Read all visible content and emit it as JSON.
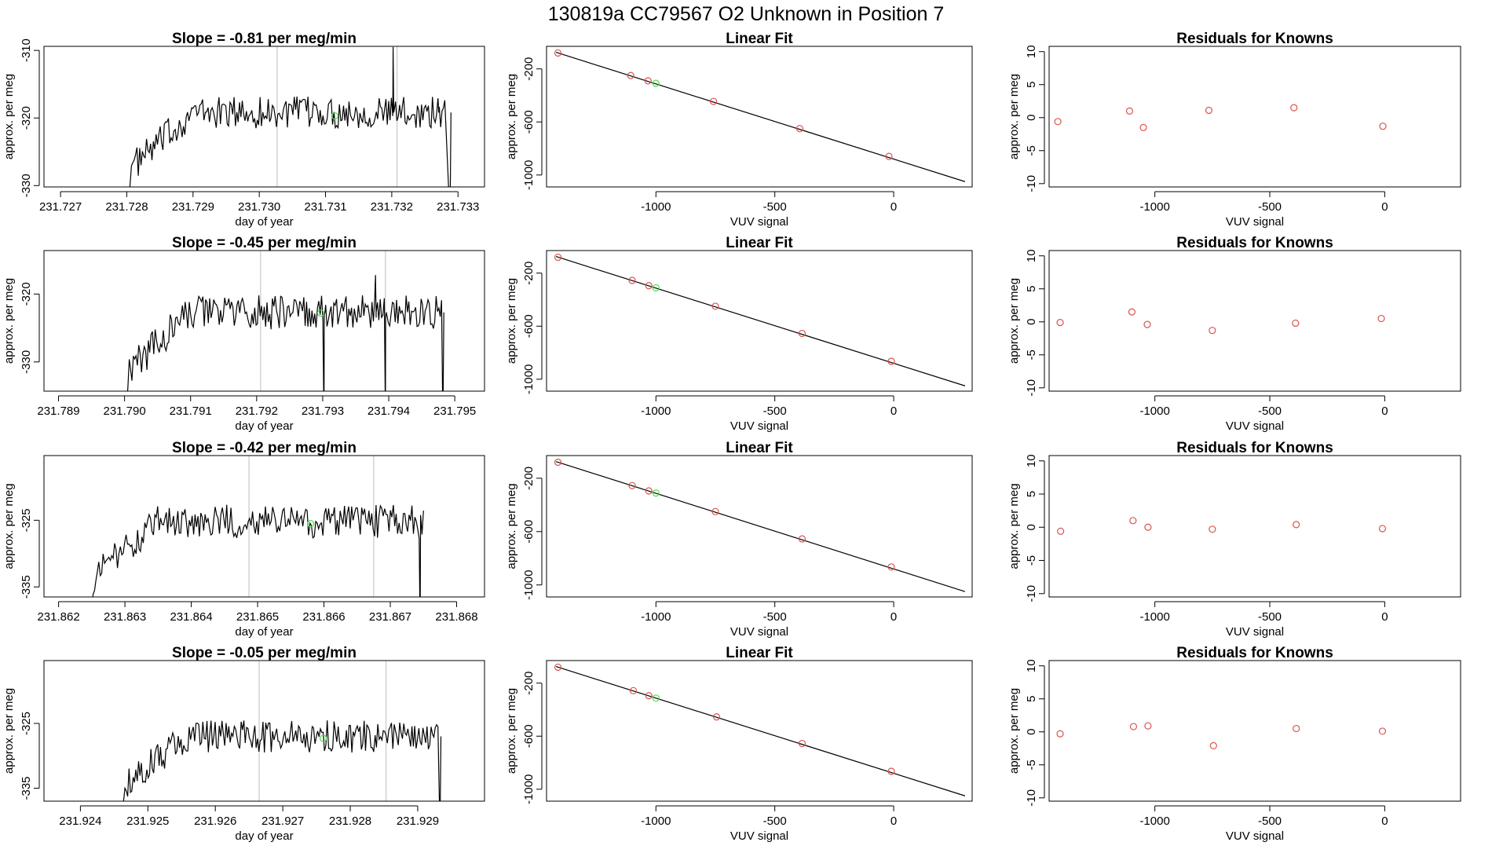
{
  "figure": {
    "title": "130819a      CC79567    O2 Unknown in Position  7"
  },
  "chart_data": [
    {
      "type": "line",
      "panel": "timeseries",
      "row": 1,
      "title": "Slope =  -0.81  per meg/min",
      "xlabel": "day of year",
      "ylabel": "approx. per meg",
      "xlim": [
        231.72675,
        231.7334
      ],
      "ylim": [
        -330.2,
        -309.4
      ],
      "xticks": [
        231.727,
        231.728,
        231.729,
        231.73,
        231.731,
        231.732,
        231.733
      ],
      "xtick_labels": [
        "231.727",
        "231.728",
        "231.729",
        "231.730",
        "231.731",
        "231.732",
        "231.733"
      ],
      "yticks": [
        -330,
        -320,
        -310
      ],
      "ytick_labels": [
        "-330",
        "-320",
        "-310"
      ],
      "vlines": [
        231.73027,
        231.73208
      ],
      "series_start": 231.72805,
      "series_end": 231.7328,
      "series_level": -319.2,
      "series_amplitude": 1.7,
      "spikes": [
        [
          231.73202,
          -309.5
        ],
        [
          231.7327,
          -317.2
        ]
      ],
      "drops": [
        [
          231.73288,
          -330.2
        ]
      ],
      "highlight": {
        "x": 231.73114,
        "y": -319.7
      }
    },
    {
      "type": "line",
      "panel": "fit",
      "row": 1,
      "title": "Linear Fit",
      "xlabel": "VUV signal",
      "ylabel": "approx. per meg",
      "xlim": [
        -1460,
        330
      ],
      "ylim": [
        -1090,
        -30
      ],
      "xticks": [
        -1000,
        -500,
        0
      ],
      "xtick_labels": [
        "-1000",
        "-500",
        "0"
      ],
      "yticks": [
        -1000,
        -600,
        -200
      ],
      "ytick_labels": [
        "-1000",
        "-600",
        "-200"
      ],
      "line": [
        [
          -1420,
          -75
        ],
        [
          300,
          -1050
        ]
      ],
      "known_points": [
        [
          -1412,
          -80
        ],
        [
          -1106,
          -250
        ],
        [
          -1033,
          -290
        ],
        [
          -758,
          -445
        ],
        [
          -395,
          -650
        ],
        [
          -20,
          -860
        ]
      ],
      "unknown_point": [
        -1000,
        -309
      ]
    },
    {
      "type": "scatter",
      "panel": "residuals",
      "row": 1,
      "title": "Residuals for Knowns",
      "xlabel": "VUV signal",
      "ylabel": "approx. per meg",
      "xlim": [
        -1460,
        330
      ],
      "ylim": [
        -10.5,
        10.8
      ],
      "xticks": [
        -1000,
        -500,
        0
      ],
      "xtick_labels": [
        "-1000",
        "-500",
        "0"
      ],
      "yticks": [
        -10,
        -5,
        0,
        5,
        10
      ],
      "ytick_labels": [
        "-10",
        "-5",
        "0",
        "5",
        "10"
      ],
      "points": [
        [
          -1422,
          -0.6
        ],
        [
          -1110,
          1.0
        ],
        [
          -1050,
          -1.5
        ],
        [
          -765,
          1.1
        ],
        [
          -395,
          1.5
        ],
        [
          -8,
          -1.3
        ]
      ]
    },
    {
      "type": "line",
      "panel": "timeseries",
      "row": 2,
      "title": "Slope =  -0.45  per meg/min",
      "xlabel": "day of year",
      "ylabel": "approx. per meg",
      "xlim": [
        231.78878,
        231.79545
      ],
      "ylim": [
        -334.3,
        -313.6
      ],
      "xticks": [
        231.789,
        231.79,
        231.791,
        231.792,
        231.793,
        231.794,
        231.795
      ],
      "xtick_labels": [
        "231.789",
        "231.790",
        "231.791",
        "231.792",
        "231.793",
        "231.794",
        "231.795"
      ],
      "yticks": [
        -330,
        -320
      ],
      "ytick_labels": [
        "-330",
        "-320"
      ],
      "vlines": [
        231.79206,
        231.79395
      ],
      "series_start": 231.79005,
      "series_end": 231.7948,
      "series_level": -322.7,
      "series_amplitude": 1.8,
      "spikes": [
        [
          231.7938,
          -317.2
        ]
      ],
      "drops": [
        [
          231.79302,
          -334.3
        ],
        [
          231.79395,
          -333.2
        ],
        [
          231.79482,
          -334.3
        ]
      ],
      "highlight": {
        "x": 231.79297,
        "y": -322.8
      }
    },
    {
      "type": "line",
      "panel": "fit",
      "row": 2,
      "title": "Linear Fit",
      "xlabel": "VUV signal",
      "ylabel": "approx. per meg",
      "xlim": [
        -1460,
        330
      ],
      "ylim": [
        -1090,
        -30
      ],
      "xticks": [
        -1000,
        -500,
        0
      ],
      "xtick_labels": [
        "-1000",
        "-500",
        "0"
      ],
      "yticks": [
        -1000,
        -600,
        -200
      ],
      "ytick_labels": [
        "-1000",
        "-600",
        "-200"
      ],
      "line": [
        [
          -1420,
          -75
        ],
        [
          300,
          -1050
        ]
      ],
      "known_points": [
        [
          -1412,
          -80
        ],
        [
          -1100,
          -255
        ],
        [
          -1030,
          -295
        ],
        [
          -750,
          -450
        ],
        [
          -385,
          -655
        ],
        [
          -10,
          -865
        ]
      ],
      "unknown_point": [
        -1000,
        -311
      ]
    },
    {
      "type": "scatter",
      "panel": "residuals",
      "row": 2,
      "title": "Residuals for Knowns",
      "xlabel": "VUV signal",
      "ylabel": "approx. per meg",
      "xlim": [
        -1460,
        330
      ],
      "ylim": [
        -10.5,
        10.8
      ],
      "xticks": [
        -1000,
        -500,
        0
      ],
      "xtick_labels": [
        "-1000",
        "-500",
        "0"
      ],
      "yticks": [
        -10,
        -5,
        0,
        5,
        10
      ],
      "ytick_labels": [
        "-10",
        "-5",
        "0",
        "5",
        "10"
      ],
      "points": [
        [
          -1412,
          -0.1
        ],
        [
          -1100,
          1.5
        ],
        [
          -1033,
          -0.4
        ],
        [
          -750,
          -1.3
        ],
        [
          -388,
          -0.2
        ],
        [
          -15,
          0.5
        ]
      ]
    },
    {
      "type": "line",
      "panel": "timeseries",
      "row": 3,
      "title": "Slope =  -0.42  per meg/min",
      "xlabel": "day of year",
      "ylabel": "approx. per meg",
      "xlim": [
        231.86178,
        231.86842
      ],
      "ylim": [
        -336.5,
        -315.3
      ],
      "xticks": [
        231.862,
        231.863,
        231.864,
        231.865,
        231.866,
        231.867,
        231.868
      ],
      "xtick_labels": [
        "231.862",
        "231.863",
        "231.864",
        "231.865",
        "231.866",
        "231.867",
        "231.868"
      ],
      "yticks": [
        -335,
        -325
      ],
      "ytick_labels": [
        "-335",
        "-325"
      ],
      "vlines": [
        231.86487,
        231.86675
      ],
      "series_start": 231.86252,
      "series_end": 231.8675,
      "series_level": -325.2,
      "series_amplitude": 1.8,
      "spikes": [],
      "drops": [
        [
          231.86745,
          -336.5
        ]
      ],
      "highlight": {
        "x": 231.8658,
        "y": -325.5
      }
    },
    {
      "type": "line",
      "panel": "fit",
      "row": 3,
      "title": "Linear Fit",
      "xlabel": "VUV signal",
      "ylabel": "approx. per meg",
      "xlim": [
        -1460,
        330
      ],
      "ylim": [
        -1090,
        -30
      ],
      "xticks": [
        -1000,
        -500,
        0
      ],
      "xtick_labels": [
        "-1000",
        "-500",
        "0"
      ],
      "yticks": [
        -1000,
        -600,
        -200
      ],
      "ytick_labels": [
        "-1000",
        "-600",
        "-200"
      ],
      "line": [
        [
          -1420,
          -75
        ],
        [
          300,
          -1050
        ]
      ],
      "known_points": [
        [
          -1412,
          -80
        ],
        [
          -1100,
          -255
        ],
        [
          -1030,
          -295
        ],
        [
          -750,
          -450
        ],
        [
          -385,
          -655
        ],
        [
          -10,
          -865
        ]
      ],
      "unknown_point": [
        -1000,
        -311
      ]
    },
    {
      "type": "scatter",
      "panel": "residuals",
      "row": 3,
      "title": "Residuals for Knowns",
      "xlabel": "VUV signal",
      "ylabel": "approx. per meg",
      "xlim": [
        -1460,
        330
      ],
      "ylim": [
        -10.5,
        10.8
      ],
      "xticks": [
        -1000,
        -500,
        0
      ],
      "xtick_labels": [
        "-1000",
        "-500",
        "0"
      ],
      "yticks": [
        -10,
        -5,
        0,
        5,
        10
      ],
      "ytick_labels": [
        "-10",
        "-5",
        "0",
        "5",
        "10"
      ],
      "points": [
        [
          -1410,
          -0.6
        ],
        [
          -1095,
          1.0
        ],
        [
          -1030,
          0.0
        ],
        [
          -750,
          -0.3
        ],
        [
          -385,
          0.4
        ],
        [
          -10,
          -0.2
        ]
      ]
    },
    {
      "type": "line",
      "panel": "timeseries",
      "row": 4,
      "title": "Slope =  -0.05  per meg/min",
      "xlabel": "day of year",
      "ylabel": "approx. per meg",
      "xlim": [
        231.92346,
        231.92999
      ],
      "ylim": [
        -337.0,
        -315.3
      ],
      "xticks": [
        231.924,
        231.925,
        231.926,
        231.927,
        231.928,
        231.929
      ],
      "xtick_labels": [
        "231.924",
        "231.925",
        "231.926",
        "231.927",
        "231.928",
        "231.929"
      ],
      "yticks": [
        -335,
        -325
      ],
      "ytick_labels": [
        "-335",
        "-325"
      ],
      "vlines": [
        231.92665,
        231.92853
      ],
      "series_start": 231.92464,
      "series_end": 231.9293,
      "series_level": -327.0,
      "series_amplitude": 1.8,
      "spikes": [],
      "drops": [
        [
          231.92933,
          -337.0
        ]
      ],
      "highlight": {
        "x": 231.9276,
        "y": -327.3
      }
    },
    {
      "type": "line",
      "panel": "fit",
      "row": 4,
      "title": "Linear Fit",
      "xlabel": "VUV signal",
      "ylabel": "approx. per meg",
      "xlim": [
        -1460,
        330
      ],
      "ylim": [
        -1090,
        -30
      ],
      "xticks": [
        -1000,
        -500,
        0
      ],
      "xtick_labels": [
        "-1000",
        "-500",
        "0"
      ],
      "yticks": [
        -1000,
        -600,
        -200
      ],
      "ytick_labels": [
        "-1000",
        "-600",
        "-200"
      ],
      "line": [
        [
          -1420,
          -75
        ],
        [
          300,
          -1050
        ]
      ],
      "known_points": [
        [
          -1412,
          -80
        ],
        [
          -1095,
          -257
        ],
        [
          -1030,
          -295
        ],
        [
          -745,
          -455
        ],
        [
          -385,
          -655
        ],
        [
          -10,
          -865
        ]
      ],
      "unknown_point": [
        -1000,
        -313
      ]
    },
    {
      "type": "scatter",
      "panel": "residuals",
      "row": 4,
      "title": "Residuals for Knowns",
      "xlabel": "VUV signal",
      "ylabel": "approx. per meg",
      "xlim": [
        -1460,
        330
      ],
      "ylim": [
        -10.5,
        10.8
      ],
      "xticks": [
        -1000,
        -500,
        0
      ],
      "xtick_labels": [
        "-1000",
        "-500",
        "0"
      ],
      "yticks": [
        -10,
        -5,
        0,
        5,
        10
      ],
      "ytick_labels": [
        "-10",
        "-5",
        "0",
        "5",
        "10"
      ],
      "points": [
        [
          -1412,
          -0.3
        ],
        [
          -1093,
          0.8
        ],
        [
          -1030,
          0.9
        ],
        [
          -745,
          -2.1
        ],
        [
          -385,
          0.5
        ],
        [
          -10,
          0.1
        ]
      ]
    }
  ],
  "colors": {
    "line": "#000000",
    "vline": "#c8c8c8",
    "known_point": "#d9534f",
    "unknown_point": "#4cdc4c"
  }
}
